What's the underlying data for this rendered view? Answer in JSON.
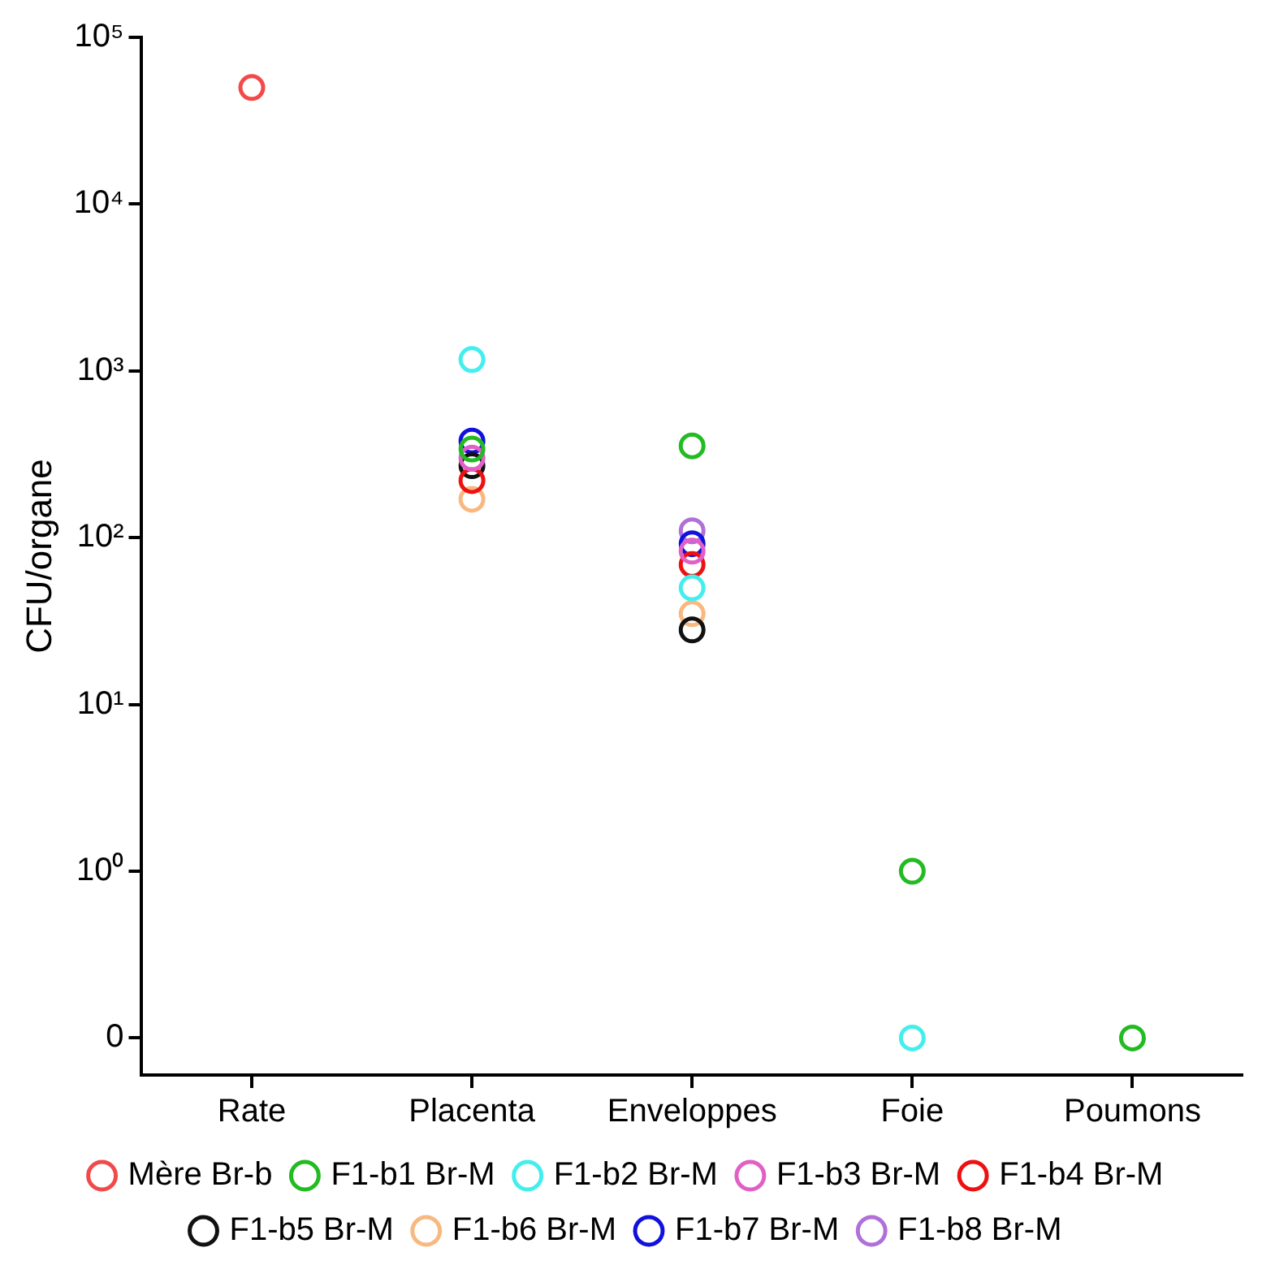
{
  "chart_data": {
    "type": "scatter",
    "ylabel": "CFU/organe",
    "categories": [
      "Rate",
      "Placenta",
      "Enveloppes",
      "Foie",
      "Poumons"
    ],
    "log": "y",
    "ylim": [
      0.06,
      100000
    ],
    "yticks": [
      {
        "value": 0.1,
        "label": "0"
      },
      {
        "value": 1,
        "label": "10⁰"
      },
      {
        "value": 10,
        "label": "10¹"
      },
      {
        "value": 100,
        "label": "10²"
      },
      {
        "value": 1000,
        "label": "10³"
      },
      {
        "value": 10000,
        "label": "10⁴"
      },
      {
        "value": 100000,
        "label": "10⁵"
      }
    ],
    "grid": false,
    "legend": "bottom",
    "marker": "circle",
    "series": [
      {
        "name": "Mère Br-b",
        "color": "#f24a4a",
        "values": [
          50000,
          null,
          null,
          null,
          null
        ]
      },
      {
        "name": "F1-b1 Br-M",
        "color": "#22bb22",
        "values": [
          null,
          340,
          355,
          1,
          0.1
        ]
      },
      {
        "name": "F1-b2 Br-M",
        "color": "#44eeee",
        "values": [
          null,
          1170,
          50,
          0.1,
          null
        ]
      },
      {
        "name": "F1-b3 Br-M",
        "color": "#e060c8",
        "values": [
          null,
          300,
          83,
          null,
          null
        ]
      },
      {
        "name": "F1-b4 Br-M",
        "color": "#ee1111",
        "values": [
          null,
          220,
          69,
          null,
          null
        ]
      },
      {
        "name": "F1-b5 Br-M",
        "color": "#111111",
        "values": [
          null,
          270,
          28,
          null,
          null
        ]
      },
      {
        "name": "F1-b6 Br-M",
        "color": "#f8b880",
        "values": [
          null,
          170,
          35,
          null,
          null
        ]
      },
      {
        "name": "F1-b7 Br-M",
        "color": "#1111dd",
        "values": [
          null,
          380,
          92,
          null,
          null
        ]
      },
      {
        "name": "F1-b8 Br-M",
        "color": "#b070d8",
        "values": [
          null,
          null,
          110,
          null,
          null
        ]
      }
    ]
  }
}
